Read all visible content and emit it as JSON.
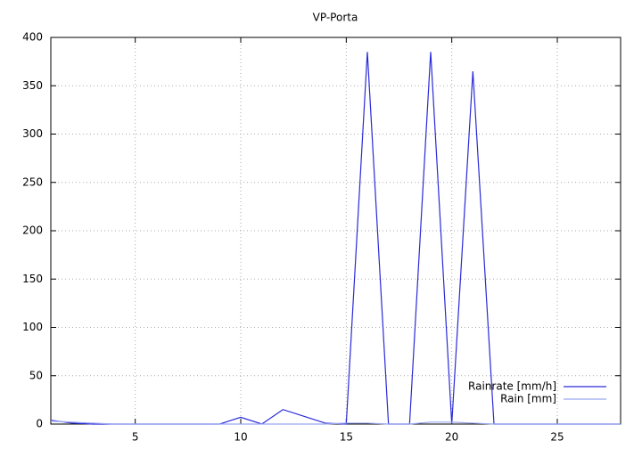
{
  "chart_data": {
    "type": "line",
    "title": "VP-Porta",
    "x": [
      1,
      2,
      3,
      4,
      5,
      6,
      7,
      8,
      9,
      10,
      11,
      12,
      13,
      14,
      15,
      16,
      17,
      18,
      19,
      20,
      21,
      22,
      23,
      24,
      25,
      26,
      27,
      28
    ],
    "series": [
      {
        "name": "Rainrate [mm/h]",
        "color": "#2a2ad8",
        "values": [
          4,
          1,
          0,
          0,
          0,
          0,
          0,
          0,
          0,
          7,
          0,
          15,
          8,
          1,
          0,
          385,
          0,
          0,
          385,
          0,
          365,
          0,
          0,
          0,
          0,
          0,
          0,
          0
        ]
      },
      {
        "name": "Rain [mm]",
        "color": "#9aa6f0",
        "values": [
          3,
          2,
          1,
          0,
          0,
          0,
          0,
          0,
          0,
          0,
          0,
          0,
          0,
          0,
          1,
          1,
          0,
          0,
          2,
          2,
          1,
          0,
          0,
          0,
          0,
          0,
          0,
          0
        ]
      }
    ],
    "xlim": [
      1,
      28
    ],
    "xticks": [
      5,
      10,
      15,
      20,
      25
    ],
    "ylim": [
      0,
      400
    ],
    "yticks": [
      0,
      50,
      100,
      150,
      200,
      250,
      300,
      350,
      400
    ],
    "grid": true,
    "legend": "bottom-right"
  }
}
